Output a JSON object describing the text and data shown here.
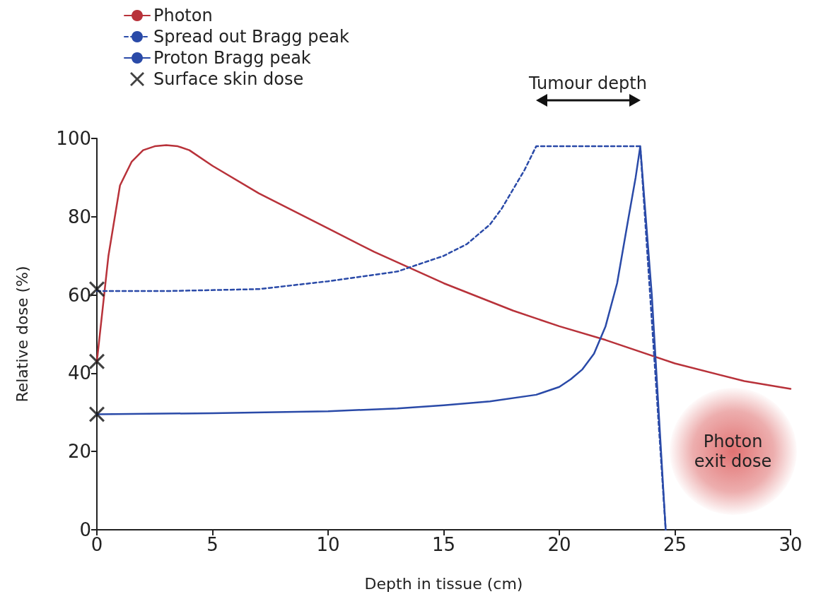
{
  "chart_data": {
    "type": "line",
    "xlabel": "Depth in tissue (cm)",
    "ylabel": "Relative dose (%)",
    "xlim": [
      0,
      30
    ],
    "xticks": [
      0,
      5,
      10,
      15,
      20,
      25,
      30
    ],
    "ylim": [
      0,
      100
    ],
    "yticks": [
      0,
      20,
      40,
      60,
      80,
      100
    ],
    "grid": false,
    "legend": "top left",
    "line_style": "solid",
    "marker": "none",
    "series": [
      {
        "name": "Photon",
        "color": "#b8323a",
        "x": [
          0,
          0.5,
          1,
          1.5,
          2,
          2.5,
          3,
          3.5,
          4,
          5,
          7,
          10,
          12,
          15,
          18,
          20,
          22,
          25,
          28,
          30
        ],
        "values": [
          43,
          70,
          88,
          94,
          97,
          98,
          98.3,
          98,
          97,
          93,
          86,
          77,
          71,
          63,
          56,
          52,
          48.5,
          42.5,
          38,
          36
        ]
      },
      {
        "name": "Spread out Bragg peak",
        "color": "#2a4aa8",
        "line_style": "dashed",
        "x": [
          0,
          3,
          7,
          10,
          13,
          15,
          16,
          17,
          17.5,
          18,
          18.5,
          19,
          20,
          23.5,
          24.6
        ],
        "values": [
          61,
          61,
          61.5,
          63.5,
          66,
          70,
          73,
          78,
          82,
          87,
          92,
          98,
          98,
          98,
          0
        ]
      },
      {
        "name": "Proton Bragg peak",
        "color": "#2a4aa8",
        "x": [
          0,
          5,
          10,
          13,
          15,
          17,
          19,
          20,
          20.5,
          21,
          21.5,
          22,
          22.5,
          23,
          23.3,
          23.5,
          24,
          24.6
        ],
        "values": [
          29.5,
          29.8,
          30.3,
          31,
          31.8,
          32.8,
          34.5,
          36.5,
          38.5,
          41,
          45,
          52,
          63,
          80,
          90,
          98,
          60,
          0
        ]
      },
      {
        "name": "Surface skin dose",
        "type": "scatter",
        "marker": "cross",
        "color": "#111111",
        "x": [
          0,
          0,
          0
        ],
        "values": [
          61.5,
          43,
          29.5
        ]
      }
    ],
    "annotations": [
      "Tumour depth",
      "Photon exit dose"
    ]
  }
}
